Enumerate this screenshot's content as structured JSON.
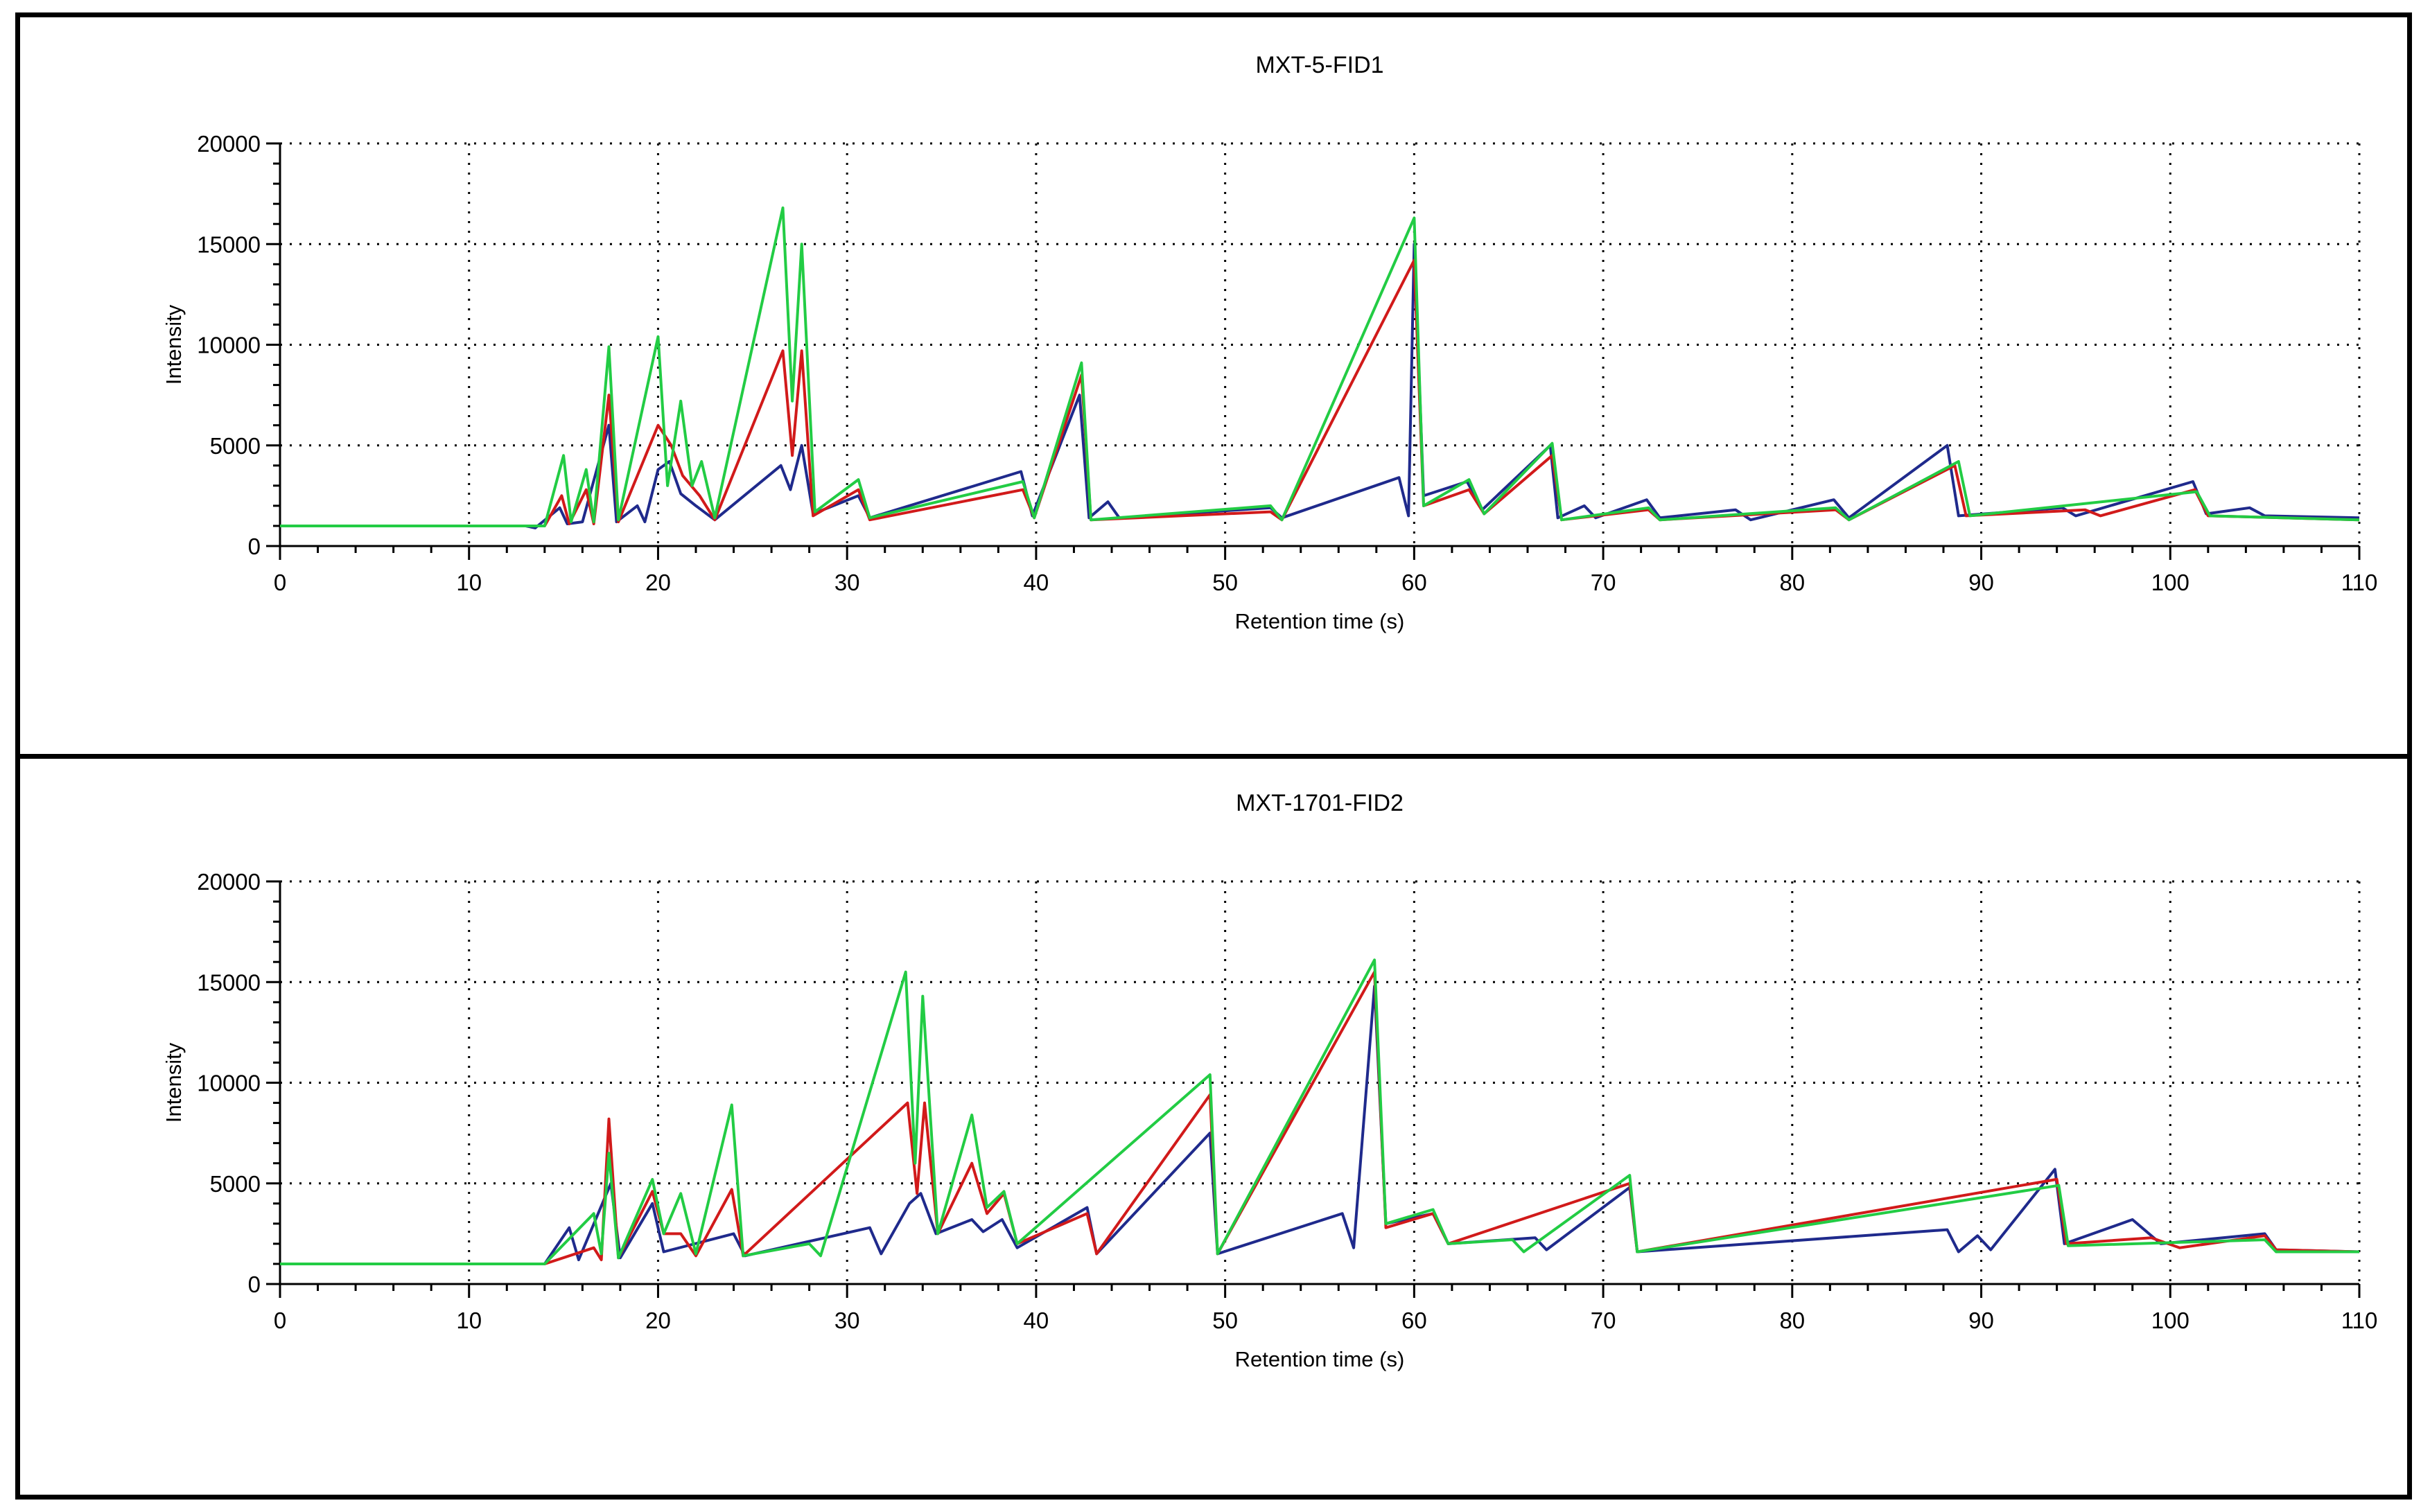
{
  "figure": {
    "panel_count": 2
  },
  "chart_data": [
    {
      "type": "line",
      "title": "MXT-5-FID1",
      "xlabel": "Retention time (s)",
      "ylabel": "Intensity",
      "xlim": [
        0,
        110
      ],
      "ylim": [
        0,
        20000
      ],
      "xticks": [
        0,
        10,
        20,
        30,
        40,
        50,
        60,
        70,
        80,
        90,
        100,
        110
      ],
      "yticks": [
        0,
        5000,
        10000,
        15000,
        20000
      ],
      "grid": true,
      "legend": "none",
      "baseline": 1000,
      "series": [
        {
          "color": "#1f2a8c",
          "points": [
            [
              0,
              1000
            ],
            [
              13,
              1000
            ],
            [
              13.5,
              900
            ],
            [
              14.8,
              1900
            ],
            [
              15.2,
              1100
            ],
            [
              16,
              1200
            ],
            [
              17.4,
              6000
            ],
            [
              17.8,
              1200
            ],
            [
              18.9,
              2000
            ],
            [
              19.3,
              1200
            ],
            [
              20,
              3800
            ],
            [
              20.6,
              4200
            ],
            [
              21.2,
              2600
            ],
            [
              22,
              2000
            ],
            [
              23,
              1300
            ],
            [
              26.5,
              4000
            ],
            [
              27,
              2800
            ],
            [
              27.6,
              5000
            ],
            [
              28.2,
              1600
            ],
            [
              30.6,
              2500
            ],
            [
              31.2,
              1400
            ],
            [
              39.2,
              3700
            ],
            [
              39.8,
              1500
            ],
            [
              42.3,
              7500
            ],
            [
              42.8,
              1400
            ],
            [
              43.8,
              2200
            ],
            [
              44.4,
              1400
            ],
            [
              52.4,
              1900
            ],
            [
              53,
              1400
            ],
            [
              59.2,
              3400
            ],
            [
              59.7,
              1500
            ],
            [
              60,
              15000
            ],
            [
              60.5,
              2500
            ],
            [
              62.8,
              3200
            ],
            [
              63.6,
              1800
            ],
            [
              67.2,
              5000
            ],
            [
              67.6,
              1400
            ],
            [
              69,
              2000
            ],
            [
              69.6,
              1400
            ],
            [
              72.3,
              2300
            ],
            [
              73,
              1400
            ],
            [
              77,
              1800
            ],
            [
              77.8,
              1300
            ],
            [
              82.2,
              2300
            ],
            [
              83,
              1400
            ],
            [
              88.2,
              5000
            ],
            [
              88.8,
              1500
            ],
            [
              94.3,
              1900
            ],
            [
              95,
              1500
            ],
            [
              101.2,
              3200
            ],
            [
              101.9,
              1600
            ],
            [
              104.2,
              1900
            ],
            [
              105,
              1500
            ],
            [
              110,
              1400
            ]
          ]
        },
        {
          "color": "#d11a1a",
          "points": [
            [
              0,
              1000
            ],
            [
              14,
              1000
            ],
            [
              14.9,
              2500
            ],
            [
              15.3,
              1100
            ],
            [
              16.2,
              2800
            ],
            [
              16.6,
              1100
            ],
            [
              17.4,
              7500
            ],
            [
              17.9,
              1200
            ],
            [
              20,
              6000
            ],
            [
              20.7,
              5000
            ],
            [
              21.3,
              3500
            ],
            [
              22.2,
              2500
            ],
            [
              23,
              1300
            ],
            [
              26.6,
              9700
            ],
            [
              27.1,
              4500
            ],
            [
              27.6,
              9700
            ],
            [
              28.2,
              1500
            ],
            [
              30.6,
              2800
            ],
            [
              31.2,
              1300
            ],
            [
              39.3,
              2800
            ],
            [
              39.9,
              1400
            ],
            [
              42.4,
              8500
            ],
            [
              42.9,
              1300
            ],
            [
              52.4,
              1700
            ],
            [
              53,
              1300
            ],
            [
              60,
              14200
            ],
            [
              60.5,
              2000
            ],
            [
              62.9,
              2800
            ],
            [
              63.7,
              1600
            ],
            [
              67.3,
              4500
            ],
            [
              67.8,
              1300
            ],
            [
              72.4,
              1800
            ],
            [
              73,
              1300
            ],
            [
              82.3,
              1800
            ],
            [
              83,
              1300
            ],
            [
              88.6,
              4000
            ],
            [
              89.2,
              1500
            ],
            [
              95.5,
              1800
            ],
            [
              96.3,
              1500
            ],
            [
              101.3,
              2800
            ],
            [
              102,
              1500
            ],
            [
              110,
              1300
            ]
          ]
        },
        {
          "color": "#22cc44",
          "points": [
            [
              0,
              1000
            ],
            [
              14,
              1000
            ],
            [
              15,
              4500
            ],
            [
              15.4,
              1200
            ],
            [
              16.2,
              3800
            ],
            [
              16.6,
              1200
            ],
            [
              17.4,
              9900
            ],
            [
              17.9,
              1300
            ],
            [
              20,
              10400
            ],
            [
              20.5,
              3000
            ],
            [
              21.2,
              7200
            ],
            [
              21.8,
              3000
            ],
            [
              22.3,
              4200
            ],
            [
              23,
              1400
            ],
            [
              26.6,
              16800
            ],
            [
              27.1,
              7200
            ],
            [
              27.6,
              15000
            ],
            [
              28.3,
              1700
            ],
            [
              30.6,
              3300
            ],
            [
              31.2,
              1400
            ],
            [
              39.3,
              3200
            ],
            [
              39.9,
              1400
            ],
            [
              42.4,
              9100
            ],
            [
              42.9,
              1300
            ],
            [
              52.4,
              2000
            ],
            [
              53,
              1300
            ],
            [
              60,
              16300
            ],
            [
              60.5,
              2000
            ],
            [
              62.9,
              3300
            ],
            [
              63.7,
              1600
            ],
            [
              67.3,
              5100
            ],
            [
              67.8,
              1300
            ],
            [
              72.4,
              1900
            ],
            [
              73,
              1300
            ],
            [
              82.3,
              1900
            ],
            [
              83,
              1300
            ],
            [
              88.8,
              4200
            ],
            [
              89.4,
              1500
            ],
            [
              101.4,
              2700
            ],
            [
              102.1,
              1500
            ],
            [
              110,
              1300
            ]
          ]
        }
      ]
    },
    {
      "type": "line",
      "title": "MXT-1701-FID2",
      "xlabel": "Retention time (s)",
      "ylabel": "Intensity",
      "xlim": [
        0,
        110
      ],
      "ylim": [
        0,
        20000
      ],
      "xticks": [
        0,
        10,
        20,
        30,
        40,
        50,
        60,
        70,
        80,
        90,
        100,
        110
      ],
      "yticks": [
        0,
        5000,
        10000,
        15000,
        20000
      ],
      "grid": true,
      "legend": "none",
      "baseline": 1000,
      "series": [
        {
          "color": "#1f2a8c",
          "points": [
            [
              0,
              1000
            ],
            [
              14,
              1000
            ],
            [
              15.3,
              2800
            ],
            [
              15.8,
              1200
            ],
            [
              17.5,
              5000
            ],
            [
              18,
              1300
            ],
            [
              19.7,
              4000
            ],
            [
              20.3,
              1600
            ],
            [
              24,
              2500
            ],
            [
              24.6,
              1400
            ],
            [
              31.2,
              2800
            ],
            [
              31.8,
              1500
            ],
            [
              33.3,
              4000
            ],
            [
              33.9,
              4500
            ],
            [
              34.7,
              2500
            ],
            [
              36.6,
              3200
            ],
            [
              37.2,
              2600
            ],
            [
              38.2,
              3200
            ],
            [
              39,
              1800
            ],
            [
              42.7,
              3800
            ],
            [
              43.2,
              1500
            ],
            [
              49.2,
              7500
            ],
            [
              49.6,
              1500
            ],
            [
              56.2,
              3500
            ],
            [
              56.8,
              1800
            ],
            [
              57.9,
              14800
            ],
            [
              58.5,
              3000
            ],
            [
              61,
              3500
            ],
            [
              61.8,
              2000
            ],
            [
              66.4,
              2300
            ],
            [
              67,
              1700
            ],
            [
              71.4,
              4800
            ],
            [
              71.8,
              1600
            ],
            [
              88.2,
              2700
            ],
            [
              88.8,
              1600
            ],
            [
              89.8,
              2400
            ],
            [
              90.5,
              1700
            ],
            [
              93.9,
              5700
            ],
            [
              94.4,
              2000
            ],
            [
              98,
              3200
            ],
            [
              99.5,
              2000
            ],
            [
              105,
              2500
            ],
            [
              105.6,
              1700
            ],
            [
              110,
              1600
            ]
          ]
        },
        {
          "color": "#d11a1a",
          "points": [
            [
              0,
              1000
            ],
            [
              14,
              1000
            ],
            [
              16.6,
              1800
            ],
            [
              17,
              1200
            ],
            [
              17.4,
              8200
            ],
            [
              17.9,
              1300
            ],
            [
              19.7,
              4600
            ],
            [
              20.3,
              2500
            ],
            [
              21.2,
              2500
            ],
            [
              22,
              1400
            ],
            [
              23.9,
              4700
            ],
            [
              24.5,
              1400
            ],
            [
              33.2,
              9000
            ],
            [
              33.7,
              4500
            ],
            [
              34.1,
              9000
            ],
            [
              34.8,
              2500
            ],
            [
              36.6,
              6000
            ],
            [
              37.4,
              3500
            ],
            [
              38.3,
              4500
            ],
            [
              39,
              2000
            ],
            [
              42.7,
              3500
            ],
            [
              43.2,
              1500
            ],
            [
              49.2,
              9400
            ],
            [
              49.6,
              1500
            ],
            [
              57.9,
              15500
            ],
            [
              58.5,
              2800
            ],
            [
              61,
              3500
            ],
            [
              61.8,
              2000
            ],
            [
              71.4,
              5000
            ],
            [
              71.8,
              1600
            ],
            [
              94,
              5200
            ],
            [
              94.5,
              2000
            ],
            [
              99,
              2300
            ],
            [
              100.5,
              1800
            ],
            [
              105,
              2400
            ],
            [
              105.6,
              1700
            ],
            [
              110,
              1600
            ]
          ]
        },
        {
          "color": "#22cc44",
          "points": [
            [
              0,
              1000
            ],
            [
              14,
              1000
            ],
            [
              16.6,
              3500
            ],
            [
              17,
              1500
            ],
            [
              17.4,
              6500
            ],
            [
              17.9,
              1300
            ],
            [
              19.7,
              5200
            ],
            [
              20.3,
              2500
            ],
            [
              21.2,
              4500
            ],
            [
              22,
              1500
            ],
            [
              23.9,
              8900
            ],
            [
              24.5,
              1400
            ],
            [
              28,
              2000
            ],
            [
              28.6,
              1400
            ],
            [
              33.1,
              15500
            ],
            [
              33.6,
              6000
            ],
            [
              34,
              14300
            ],
            [
              34.8,
              2500
            ],
            [
              36.6,
              8400
            ],
            [
              37.4,
              3800
            ],
            [
              38.3,
              4600
            ],
            [
              39,
              2000
            ],
            [
              49.2,
              10400
            ],
            [
              49.6,
              1500
            ],
            [
              57.9,
              16100
            ],
            [
              58.5,
              3000
            ],
            [
              61,
              3700
            ],
            [
              61.8,
              2000
            ],
            [
              65.2,
              2200
            ],
            [
              65.8,
              1600
            ],
            [
              71.4,
              5400
            ],
            [
              71.8,
              1600
            ],
            [
              94.1,
              4900
            ],
            [
              94.6,
              1900
            ],
            [
              105,
              2200
            ],
            [
              105.6,
              1600
            ],
            [
              110,
              1600
            ]
          ]
        }
      ]
    }
  ]
}
